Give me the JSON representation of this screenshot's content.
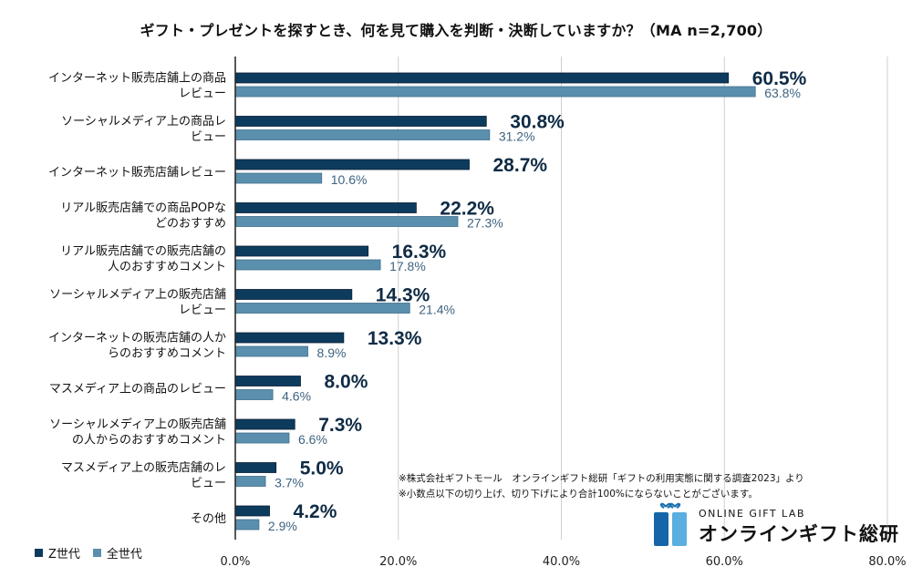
{
  "chart_data": {
    "type": "bar",
    "orientation": "horizontal",
    "title": "ギフト・プレゼントを探すとき、何を見て購入を判断・決断していますか？（MA n=2,700）",
    "categories": [
      [
        "インターネット販売店舗上の商品",
        "レビュー"
      ],
      [
        "ソーシャルメディア上の商品レ",
        "ビュー"
      ],
      [
        "インターネット販売店舗レビュー"
      ],
      [
        "リアル販売店舗での商品POPな",
        "どのおすすめ"
      ],
      [
        "リアル販売店舗での販売店舗の",
        "人のおすすめコメント"
      ],
      [
        "ソーシャルメディア上の販売店舗",
        "レビュー"
      ],
      [
        "インターネットの販売店舗の人か",
        "らのおすすめコメント"
      ],
      [
        "マスメディア上の商品のレビュー"
      ],
      [
        "ソーシャルメディア上の販売店舗",
        "の人からのおすすめコメント"
      ],
      [
        "マスメディア上の販売店舗のレ",
        "ビュー"
      ],
      [
        "その他"
      ]
    ],
    "series": [
      {
        "name": "Z世代",
        "color": "#0d3b5e",
        "values": [
          60.5,
          30.8,
          28.7,
          22.2,
          16.3,
          14.3,
          13.3,
          8.0,
          7.3,
          5.0,
          4.2
        ]
      },
      {
        "name": "全世代",
        "color": "#5b8fae",
        "values": [
          63.8,
          31.2,
          10.6,
          27.3,
          17.8,
          21.4,
          8.9,
          4.6,
          6.6,
          3.7,
          2.9
        ]
      }
    ],
    "xlim": [
      0,
      80
    ],
    "xticks": [
      "0.0%",
      "20.0%",
      "40.0%",
      "60.0%",
      "80.0%"
    ],
    "xtick_values": [
      0,
      20,
      40,
      60,
      80
    ],
    "grid": true,
    "legend_position": "bottom-left",
    "value_suffix": "%"
  },
  "notes": [
    "※株式会社ギフトモール　オンラインギフト総研「ギフトの利用実態に関する調査2023」より",
    "※小数点以下の切り上げ、切り下げにより合計100%にならないことがございます。"
  ],
  "logo": {
    "en": "ONLINE GIFT LAB",
    "jp": "オンラインギフト総研"
  }
}
